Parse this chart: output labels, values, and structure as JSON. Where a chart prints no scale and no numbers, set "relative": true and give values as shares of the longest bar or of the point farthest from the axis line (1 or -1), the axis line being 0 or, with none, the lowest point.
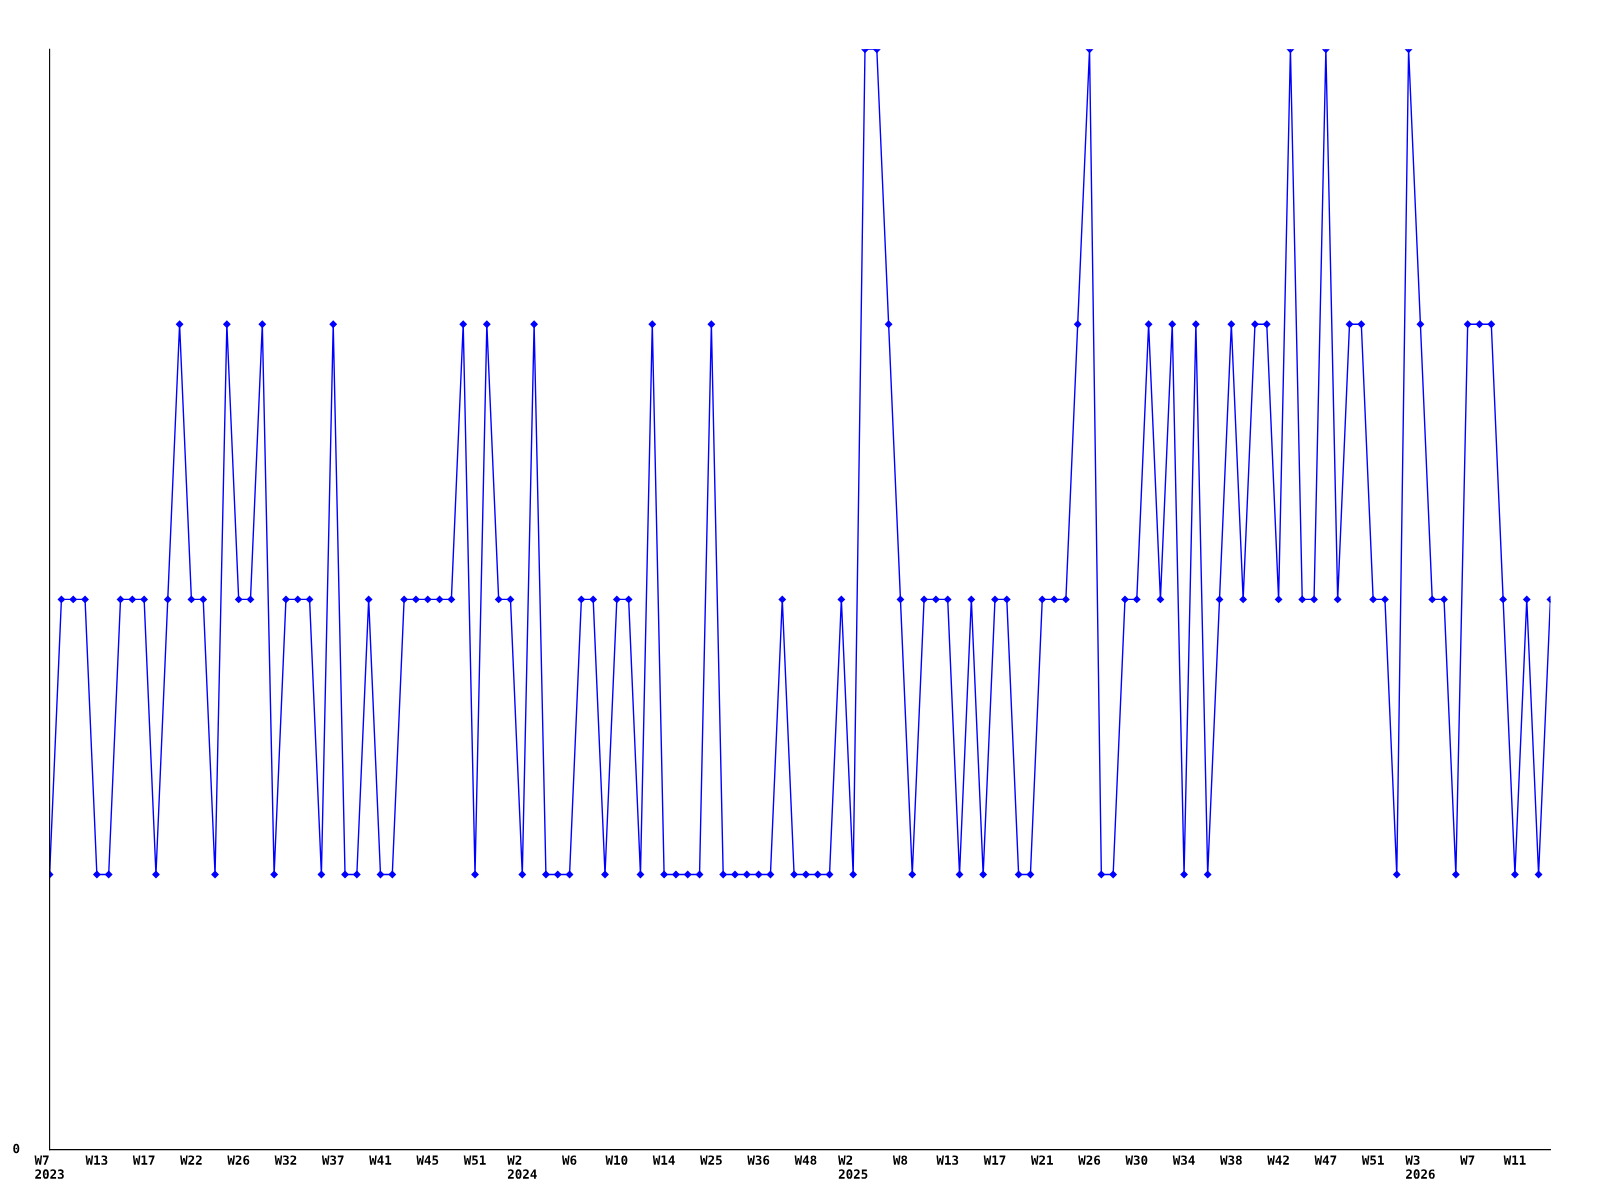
{
  "chart_data": {
    "type": "line",
    "relative": true,
    "annotations": [
      "0"
    ],
    "color": "#0000ff",
    "marker": "diamond",
    "line_style": "solid",
    "grid": false,
    "legend": false,
    "categories": [
      "W7\n2023",
      null,
      null,
      null,
      "W13",
      null,
      null,
      null,
      "W17",
      null,
      null,
      null,
      "W22",
      null,
      null,
      null,
      "W26",
      null,
      null,
      null,
      "W32",
      null,
      null,
      null,
      "W37",
      null,
      null,
      null,
      "W41",
      null,
      null,
      null,
      "W45",
      null,
      null,
      null,
      "W51",
      null,
      null,
      null,
      "W2\n2024",
      null,
      null,
      null,
      "W6",
      null,
      null,
      null,
      "W10",
      null,
      null,
      null,
      "W14",
      null,
      null,
      null,
      "W25",
      null,
      null,
      null,
      "W36",
      null,
      null,
      null,
      "W48",
      null,
      null,
      null,
      "W2\n2025",
      null,
      null,
      null,
      "W8",
      null,
      null,
      null,
      "W13",
      null,
      null,
      null,
      "W17",
      null,
      null,
      null,
      "W21",
      null,
      null,
      null,
      "W26",
      null,
      null,
      null,
      "W30",
      null,
      null,
      null,
      "W34",
      null,
      null,
      null,
      "W38",
      null,
      null,
      null,
      "W42",
      null,
      null,
      null,
      "W47",
      null,
      null,
      null,
      "W51",
      null,
      null,
      null,
      "W3\n2026",
      null,
      null,
      null,
      "W7",
      null,
      null,
      null,
      "W11",
      null,
      null,
      null
    ],
    "values": [
      0.25,
      0.5,
      0.5,
      0.5,
      0.25,
      0.25,
      0.5,
      0.5,
      0.5,
      0.25,
      0.5,
      0.75,
      0.5,
      0.5,
      0.25,
      0.75,
      0.5,
      0.5,
      0.75,
      0.25,
      0.5,
      0.5,
      0.5,
      0.25,
      0.75,
      0.25,
      0.25,
      0.5,
      0.25,
      0.25,
      0.5,
      0.5,
      0.5,
      0.5,
      0.5,
      0.75,
      0.25,
      0.75,
      0.5,
      0.5,
      0.25,
      0.75,
      0.25,
      0.25,
      0.25,
      0.5,
      0.5,
      0.25,
      0.5,
      0.5,
      0.25,
      0.75,
      0.25,
      0.25,
      0.25,
      0.25,
      0.75,
      0.25,
      0.25,
      0.25,
      0.25,
      0.25,
      0.5,
      0.25,
      0.25,
      0.25,
      0.25,
      0.5,
      0.25,
      1,
      1,
      0.75,
      0.5,
      0.25,
      0.5,
      0.5,
      0.5,
      0.25,
      0.5,
      0.25,
      0.5,
      0.5,
      0.25,
      0.25,
      0.5,
      0.5,
      0.5,
      0.75,
      1,
      0.25,
      0.25,
      0.5,
      0.5,
      0.75,
      0.5,
      0.75,
      0.25,
      0.75,
      0.25,
      0.5,
      0.75,
      0.5,
      0.75,
      0.75,
      0.5,
      1,
      0.5,
      0.5,
      1,
      0.5,
      0.75,
      0.75,
      0.5,
      0.5,
      0.25,
      1,
      0.75,
      0.5,
      0.5,
      0.25,
      0.75,
      0.75,
      0.75,
      0.5,
      0.25,
      0.5,
      0.25,
      0.5
    ]
  }
}
